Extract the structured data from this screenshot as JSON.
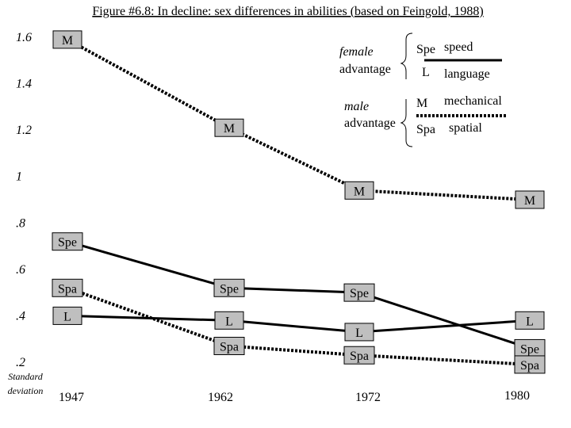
{
  "chart_data": {
    "type": "line",
    "title": "Figure #6.8: In decline: sex differences in abilities (based on Feingold, 1988)",
    "ylabel": "Standard deviation",
    "ylim": [
      0.2,
      1.6
    ],
    "y_ticks": [
      "1.6",
      "1.4",
      "1.2",
      "1",
      ".8",
      ".6",
      ".4",
      ".2"
    ],
    "y_tick_values": [
      1.6,
      1.4,
      1.2,
      1.0,
      0.8,
      0.6,
      0.4,
      0.2
    ],
    "x": [
      "1947",
      "1962",
      "1972",
      "1980"
    ],
    "grid": false,
    "series": [
      {
        "name": "mechanical",
        "abbr": "M",
        "group": "male",
        "style": "dotted",
        "values": [
          1.59,
          1.21,
          0.94,
          0.9
        ]
      },
      {
        "name": "speed",
        "abbr": "Spe",
        "group": "female",
        "style": "solid",
        "values": [
          0.72,
          0.52,
          0.5,
          0.26
        ]
      },
      {
        "name": "spatial",
        "abbr": "Spa",
        "group": "male",
        "style": "dotted",
        "values": [
          0.52,
          0.27,
          0.23,
          0.19
        ]
      },
      {
        "name": "language",
        "abbr": "L",
        "group": "female",
        "style": "solid",
        "values": [
          0.4,
          0.38,
          0.33,
          0.38
        ]
      }
    ],
    "legend": {
      "placement": "top-right",
      "female_label_1": "female",
      "female_label_2": "advantage",
      "male_label_1": "male",
      "male_label_2": "advantage",
      "entries": [
        {
          "abbr": "Spe",
          "name": "speed"
        },
        {
          "abbr": "L",
          "name": "language"
        },
        {
          "abbr": "M",
          "name": "mechanical"
        },
        {
          "abbr": "Spa",
          "name": "spatial"
        }
      ]
    }
  },
  "colors": {
    "label_fill": "#bfbfbf",
    "ink": "#000000",
    "background": "#ffffff"
  }
}
